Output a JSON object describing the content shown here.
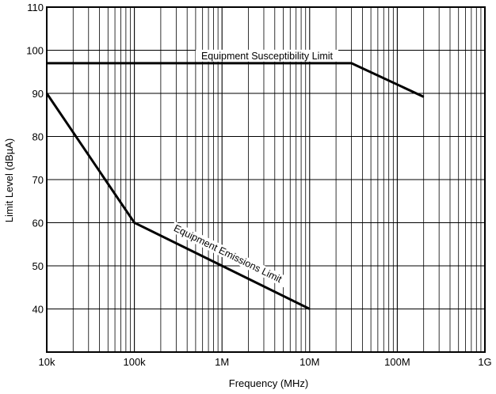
{
  "chart_data": {
    "type": "line",
    "title": "",
    "xlabel": "Frequency (MHz)",
    "ylabel": "Limit Level (dBµA)",
    "xscale": "log",
    "xlim": [
      10000,
      1000000000
    ],
    "ylim": [
      30,
      110
    ],
    "xticks": [
      10000,
      100000,
      1000000,
      10000000,
      100000000,
      1000000000
    ],
    "xtick_labels": [
      "10k",
      "100k",
      "1M",
      "10M",
      "100M",
      "1G"
    ],
    "yticks": [
      40,
      50,
      60,
      70,
      80,
      90,
      100,
      110
    ],
    "ytick_labels": [
      "40",
      "50",
      "60",
      "70",
      "80",
      "90",
      "100",
      "110"
    ],
    "grid": true,
    "legend": "none",
    "series": [
      {
        "name": "Equipment Susceptibility Limit",
        "x": [
          10000,
          30000000,
          200000000
        ],
        "y": [
          97,
          97,
          89.2
        ]
      },
      {
        "name": "Equipment Emissions Limit",
        "x": [
          10000,
          100000,
          10000000
        ],
        "y": [
          90,
          60,
          40
        ]
      }
    ]
  }
}
